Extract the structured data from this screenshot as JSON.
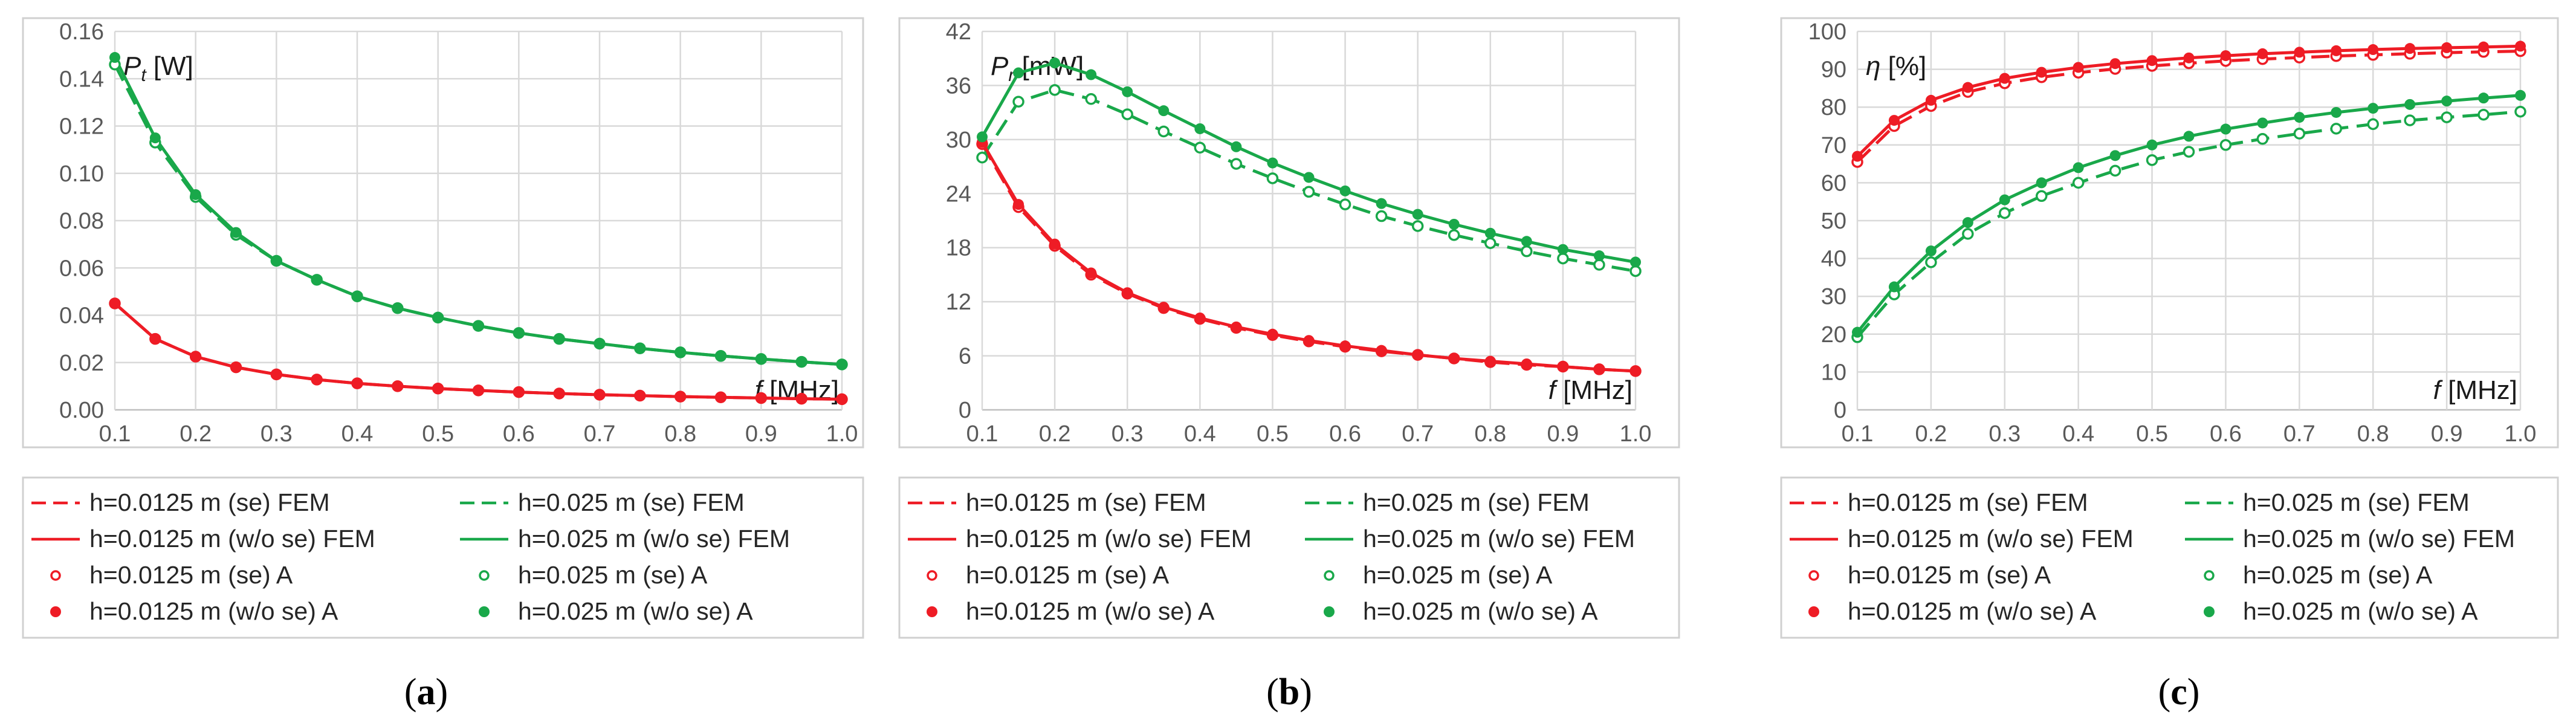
{
  "colors": {
    "red": "#ee1c25",
    "green": "#19a84a"
  },
  "chart_data": [
    {
      "type": "line",
      "caption_letter": "a",
      "ylabel_main": "P",
      "ylabel_sub": "t",
      "ylabel_unit": " [W]",
      "xlabel_main": "f",
      "xlabel_unit": " [MHz]",
      "xlim": [
        0.1,
        1.0
      ],
      "ylim": [
        0,
        0.16
      ],
      "x_ticks": [
        "0.1",
        "0.2",
        "0.3",
        "0.4",
        "0.5",
        "0.6",
        "0.7",
        "0.8",
        "0.9",
        "1.0"
      ],
      "y_ticks": [
        "0.00",
        "0.02",
        "0.04",
        "0.06",
        "0.08",
        "0.10",
        "0.12",
        "0.14",
        "0.16"
      ],
      "x": [
        0.1,
        0.15,
        0.2,
        0.25,
        0.3,
        0.35,
        0.4,
        0.45,
        0.5,
        0.55,
        0.6,
        0.65,
        0.7,
        0.75,
        0.8,
        0.85,
        0.9,
        0.95,
        1.0
      ],
      "series": [
        {
          "name": "h=0.0125 m (se) FEM",
          "color": "red",
          "style": "dash",
          "values": [
            0.045,
            0.03,
            0.0225,
            0.018,
            0.015,
            0.0128,
            0.0112,
            0.01,
            0.009,
            0.0082,
            0.0075,
            0.0069,
            0.0064,
            0.006,
            0.0056,
            0.0053,
            0.005,
            0.0047,
            0.0045
          ]
        },
        {
          "name": "h=0.025 m (se) FEM",
          "color": "green",
          "style": "dash",
          "values": [
            0.146,
            0.113,
            0.09,
            0.074,
            0.063,
            0.055,
            0.048,
            0.043,
            0.039,
            0.0355,
            0.0325,
            0.03,
            0.028,
            0.026,
            0.0243,
            0.0228,
            0.0215,
            0.0203,
            0.0192
          ]
        },
        {
          "name": "h=0.0125 m (w/o se) FEM",
          "color": "red",
          "style": "solid",
          "values": [
            0.045,
            0.03,
            0.0225,
            0.018,
            0.015,
            0.0128,
            0.0112,
            0.01,
            0.009,
            0.0082,
            0.0075,
            0.0069,
            0.0064,
            0.006,
            0.0056,
            0.0053,
            0.005,
            0.0047,
            0.0045
          ]
        },
        {
          "name": "h=0.025 m (w/o se) FEM",
          "color": "green",
          "style": "solid",
          "values": [
            0.149,
            0.115,
            0.091,
            0.075,
            0.063,
            0.055,
            0.048,
            0.043,
            0.039,
            0.0355,
            0.0325,
            0.03,
            0.028,
            0.026,
            0.0243,
            0.0228,
            0.0215,
            0.0203,
            0.0192
          ]
        },
        {
          "name": "h=0.0125 m (se) A",
          "color": "red",
          "style": "open",
          "values": [
            0.045,
            0.03,
            0.0225,
            0.018,
            0.015,
            0.0128,
            0.0112,
            0.01,
            0.009,
            0.0082,
            0.0075,
            0.0069,
            0.0064,
            0.006,
            0.0056,
            0.0053,
            0.005,
            0.0047,
            0.0045
          ]
        },
        {
          "name": "h=0.025 m (se) A",
          "color": "green",
          "style": "open",
          "values": [
            0.146,
            0.113,
            0.09,
            0.074,
            0.063,
            0.055,
            0.048,
            0.043,
            0.039,
            0.0355,
            0.0325,
            0.03,
            0.028,
            0.026,
            0.0243,
            0.0228,
            0.0215,
            0.0203,
            0.0192
          ]
        },
        {
          "name": "h=0.0125 m (w/o se) A",
          "color": "red",
          "style": "filled",
          "values": [
            0.045,
            0.03,
            0.0225,
            0.018,
            0.015,
            0.0128,
            0.0112,
            0.01,
            0.009,
            0.0082,
            0.0075,
            0.0069,
            0.0064,
            0.006,
            0.0056,
            0.0053,
            0.005,
            0.0047,
            0.0045
          ]
        },
        {
          "name": "h=0.025 m (w/o se) A",
          "color": "green",
          "style": "filled",
          "values": [
            0.149,
            0.115,
            0.091,
            0.075,
            0.063,
            0.055,
            0.048,
            0.043,
            0.039,
            0.0355,
            0.0325,
            0.03,
            0.028,
            0.026,
            0.0243,
            0.0228,
            0.0215,
            0.0203,
            0.0192
          ]
        }
      ]
    },
    {
      "type": "line",
      "caption_letter": "b",
      "ylabel_main": "P",
      "ylabel_sub": "r",
      "ylabel_unit": " [mW]",
      "xlabel_main": "f",
      "xlabel_unit": " [MHz]",
      "xlim": [
        0.1,
        1.0
      ],
      "ylim": [
        0,
        42
      ],
      "x_ticks": [
        "0.1",
        "0.2",
        "0.3",
        "0.4",
        "0.5",
        "0.6",
        "0.7",
        "0.8",
        "0.9",
        "1.0"
      ],
      "y_ticks": [
        "0",
        "6",
        "12",
        "18",
        "24",
        "30",
        "36",
        "42"
      ],
      "x": [
        0.1,
        0.15,
        0.2,
        0.25,
        0.3,
        0.35,
        0.4,
        0.45,
        0.5,
        0.55,
        0.6,
        0.65,
        0.7,
        0.75,
        0.8,
        0.85,
        0.9,
        0.95,
        1.0
      ],
      "series": [
        {
          "name": "h=0.0125 m (se) FEM",
          "color": "red",
          "style": "dash",
          "values": [
            29.5,
            22.5,
            18.2,
            15.0,
            12.9,
            11.3,
            10.1,
            9.1,
            8.3,
            7.6,
            7.0,
            6.5,
            6.1,
            5.7,
            5.3,
            5.0,
            4.8,
            4.5,
            4.3
          ]
        },
        {
          "name": "h=0.025 m (se) FEM",
          "color": "green",
          "style": "dash",
          "values": [
            28.0,
            34.2,
            35.5,
            34.5,
            32.8,
            30.9,
            29.1,
            27.3,
            25.7,
            24.2,
            22.8,
            21.5,
            20.4,
            19.4,
            18.5,
            17.6,
            16.8,
            16.1,
            15.4
          ]
        },
        {
          "name": "h=0.0125 m (w/o se) FEM",
          "color": "red",
          "style": "solid",
          "values": [
            29.7,
            22.8,
            18.4,
            15.2,
            13.0,
            11.4,
            10.2,
            9.2,
            8.4,
            7.7,
            7.1,
            6.6,
            6.1,
            5.7,
            5.4,
            5.1,
            4.8,
            4.5,
            4.3
          ]
        },
        {
          "name": "h=0.025 m (w/o se) FEM",
          "color": "green",
          "style": "solid",
          "values": [
            30.3,
            37.4,
            38.5,
            37.2,
            35.3,
            33.2,
            31.2,
            29.2,
            27.4,
            25.8,
            24.3,
            22.9,
            21.7,
            20.6,
            19.6,
            18.7,
            17.8,
            17.1,
            16.4
          ]
        },
        {
          "name": "h=0.0125 m (se) A",
          "color": "red",
          "style": "open",
          "values": [
            29.5,
            22.5,
            18.2,
            15.0,
            12.9,
            11.3,
            10.1,
            9.1,
            8.3,
            7.6,
            7.0,
            6.5,
            6.1,
            5.7,
            5.3,
            5.0,
            4.8,
            4.5,
            4.3
          ]
        },
        {
          "name": "h=0.025 m (se) A",
          "color": "green",
          "style": "open",
          "values": [
            28.0,
            34.2,
            35.5,
            34.5,
            32.8,
            30.9,
            29.1,
            27.3,
            25.7,
            24.2,
            22.8,
            21.5,
            20.4,
            19.4,
            18.5,
            17.6,
            16.8,
            16.1,
            15.4
          ]
        },
        {
          "name": "h=0.0125 m (w/o se) A",
          "color": "red",
          "style": "filled",
          "values": [
            29.7,
            22.8,
            18.4,
            15.2,
            13.0,
            11.4,
            10.2,
            9.2,
            8.4,
            7.7,
            7.1,
            6.6,
            6.1,
            5.7,
            5.4,
            5.1,
            4.8,
            4.5,
            4.3
          ]
        },
        {
          "name": "h=0.025 m (w/o se) A",
          "color": "green",
          "style": "filled",
          "values": [
            30.3,
            37.4,
            38.5,
            37.2,
            35.3,
            33.2,
            31.2,
            29.2,
            27.4,
            25.8,
            24.3,
            22.9,
            21.7,
            20.6,
            19.6,
            18.7,
            17.8,
            17.1,
            16.4
          ]
        }
      ]
    },
    {
      "type": "line",
      "caption_letter": "c",
      "ylabel_main": "η",
      "ylabel_sub": "",
      "ylabel_unit": " [%]",
      "xlabel_main": "f",
      "xlabel_unit": " [MHz]",
      "xlim": [
        0.1,
        1.0
      ],
      "ylim": [
        0,
        100
      ],
      "x_ticks": [
        "0.1",
        "0.2",
        "0.3",
        "0.4",
        "0.5",
        "0.6",
        "0.7",
        "0.8",
        "0.9",
        "1.0"
      ],
      "y_ticks": [
        "0",
        "10",
        "20",
        "30",
        "40",
        "50",
        "60",
        "70",
        "80",
        "90",
        "100"
      ],
      "x": [
        0.1,
        0.15,
        0.2,
        0.25,
        0.3,
        0.35,
        0.4,
        0.45,
        0.5,
        0.55,
        0.6,
        0.65,
        0.7,
        0.75,
        0.8,
        0.85,
        0.9,
        0.95,
        1.0
      ],
      "series": [
        {
          "name": "h=0.0125 m (se) FEM",
          "color": "red",
          "style": "dash",
          "values": [
            65.5,
            75.0,
            80.3,
            84.0,
            86.3,
            87.9,
            89.1,
            90.1,
            90.9,
            91.6,
            92.2,
            92.7,
            93.1,
            93.5,
            93.8,
            94.1,
            94.4,
            94.6,
            94.8
          ]
        },
        {
          "name": "h=0.025 m (se) FEM",
          "color": "green",
          "style": "dash",
          "values": [
            19.2,
            30.5,
            39.0,
            46.5,
            52.0,
            56.5,
            60.0,
            63.2,
            66.0,
            68.2,
            70.0,
            71.6,
            73.0,
            74.3,
            75.5,
            76.5,
            77.3,
            78.0,
            78.8
          ]
        },
        {
          "name": "h=0.0125 m (w/o se) FEM",
          "color": "red",
          "style": "solid",
          "values": [
            67.0,
            76.5,
            81.8,
            85.2,
            87.6,
            89.2,
            90.5,
            91.5,
            92.3,
            93.0,
            93.6,
            94.1,
            94.5,
            94.9,
            95.2,
            95.5,
            95.7,
            95.9,
            96.1
          ]
        },
        {
          "name": "h=0.025 m (w/o se) FEM",
          "color": "green",
          "style": "solid",
          "values": [
            20.5,
            32.5,
            42.0,
            49.5,
            55.5,
            60.0,
            64.0,
            67.2,
            70.0,
            72.3,
            74.2,
            75.8,
            77.3,
            78.6,
            79.7,
            80.7,
            81.6,
            82.4,
            83.1
          ]
        },
        {
          "name": "h=0.0125 m (se) A",
          "color": "red",
          "style": "open",
          "values": [
            65.5,
            75.0,
            80.3,
            84.0,
            86.3,
            87.9,
            89.1,
            90.1,
            90.9,
            91.6,
            92.2,
            92.7,
            93.1,
            93.5,
            93.8,
            94.1,
            94.4,
            94.6,
            94.8
          ]
        },
        {
          "name": "h=0.025 m (se) A",
          "color": "green",
          "style": "open",
          "values": [
            19.2,
            30.5,
            39.0,
            46.5,
            52.0,
            56.5,
            60.0,
            63.2,
            66.0,
            68.2,
            70.0,
            71.6,
            73.0,
            74.3,
            75.5,
            76.5,
            77.3,
            78.0,
            78.8
          ]
        },
        {
          "name": "h=0.0125 m (w/o se) A",
          "color": "red",
          "style": "filled",
          "values": [
            67.0,
            76.5,
            81.8,
            85.2,
            87.6,
            89.2,
            90.5,
            91.5,
            92.3,
            93.0,
            93.6,
            94.1,
            94.5,
            94.9,
            95.2,
            95.5,
            95.7,
            95.9,
            96.1
          ]
        },
        {
          "name": "h=0.025 m (w/o se) A",
          "color": "green",
          "style": "filled",
          "values": [
            20.5,
            32.5,
            42.0,
            49.5,
            55.5,
            60.0,
            64.0,
            67.2,
            70.0,
            72.3,
            74.2,
            75.8,
            77.3,
            78.6,
            79.7,
            80.7,
            81.6,
            82.4,
            83.1
          ]
        }
      ]
    }
  ]
}
